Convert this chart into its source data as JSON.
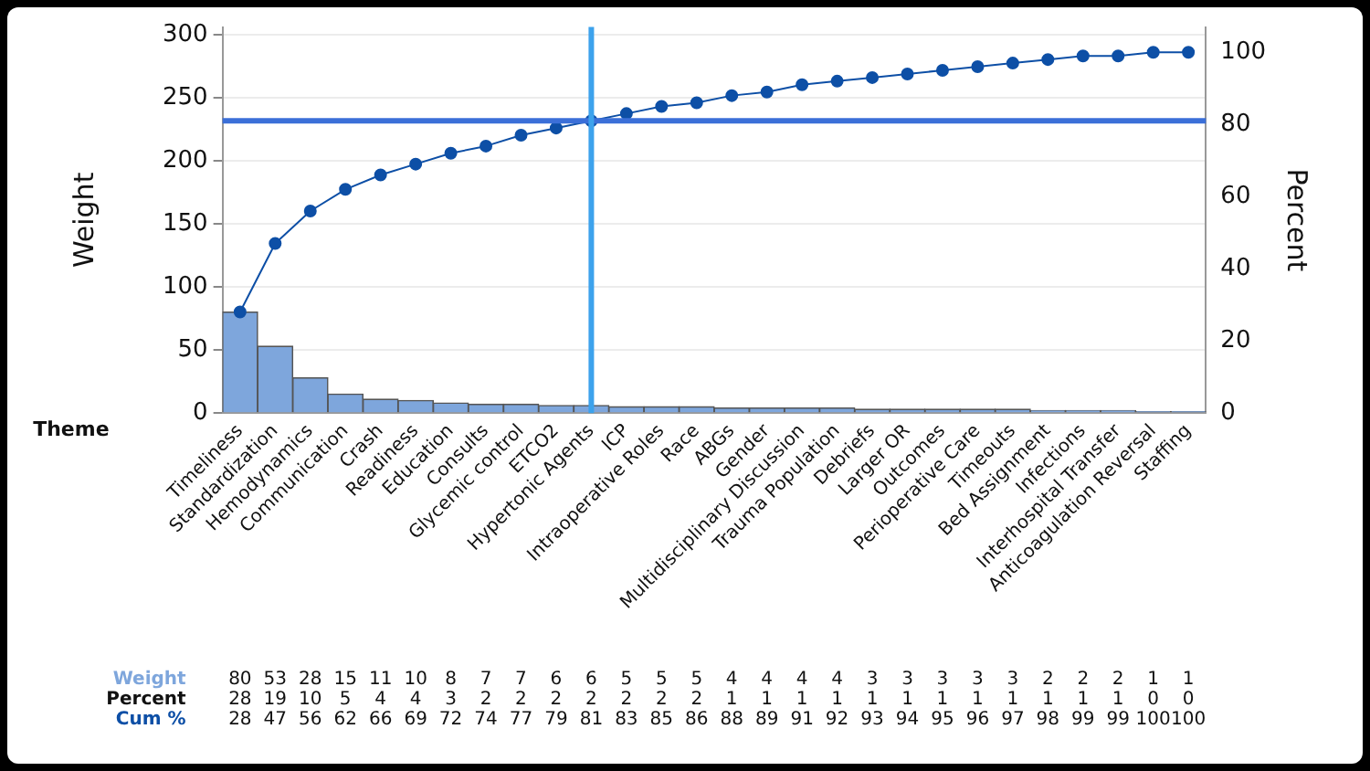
{
  "chart_data": {
    "type": "bar",
    "xlabel": "Theme",
    "ylabel": "Weight",
    "y2label": "Percent",
    "categories": [
      "Timeliness",
      "Standardization",
      "Hemodynamics",
      "Communication",
      "Crash",
      "Readiness",
      "Education",
      "Consults",
      "Glycemic control",
      "ETCO2",
      "Hypertonic Agents",
      "ICP",
      "Intraoperative Roles",
      "Race",
      "ABGs",
      "Gender",
      "Multidisciplinary Discussion",
      "Trauma Population",
      "Debriefs",
      "Larger OR",
      "Outcomes",
      "Perioperative Care",
      "Timeouts",
      "Bed Assignment",
      "Infections",
      "Interhospital Transfer",
      "Anticoagulation Reversal",
      "Staffing"
    ],
    "series": [
      {
        "name": "Weight",
        "color": "#7ea6dc",
        "values": [
          80,
          53,
          28,
          15,
          11,
          10,
          8,
          7,
          7,
          6,
          6,
          5,
          5,
          5,
          4,
          4,
          4,
          4,
          3,
          3,
          3,
          3,
          3,
          2,
          2,
          2,
          1,
          1
        ]
      },
      {
        "name": "Cum %",
        "type": "line",
        "axis": "y2",
        "color": "#0d4fa6",
        "values": [
          28,
          47,
          56,
          62,
          66,
          69,
          72,
          74,
          77,
          79,
          81,
          83,
          85,
          86,
          88,
          89,
          91,
          92,
          93,
          94,
          95,
          96,
          97,
          98,
          99,
          99,
          100,
          100
        ]
      }
    ],
    "ylim": [
      0,
      306
    ],
    "yticks": [
      0,
      50,
      100,
      150,
      200,
      250,
      300
    ],
    "y2lim": [
      0,
      107
    ],
    "y2ticks": [
      0,
      20,
      40,
      60,
      80,
      100
    ],
    "ref_lines": [
      {
        "axis": "y2",
        "value": 81,
        "color": "#3b6fd8"
      },
      {
        "axis": "x",
        "value": "Hypertonic Agents",
        "color": "#3da2ec"
      }
    ],
    "annotations": [
      "Percent",
      "28",
      "19",
      "10",
      "5",
      "4",
      "4",
      "3",
      "2",
      "2",
      "2",
      "2",
      "2",
      "2",
      "2",
      "1",
      "1",
      "1",
      "1",
      "1",
      "1",
      "1",
      "1",
      "1",
      "1",
      "1",
      "1",
      "0",
      "0"
    ],
    "grid": "y",
    "legend": false,
    "marker": "circle",
    "line_style": "solid",
    "data_labels": true
  }
}
